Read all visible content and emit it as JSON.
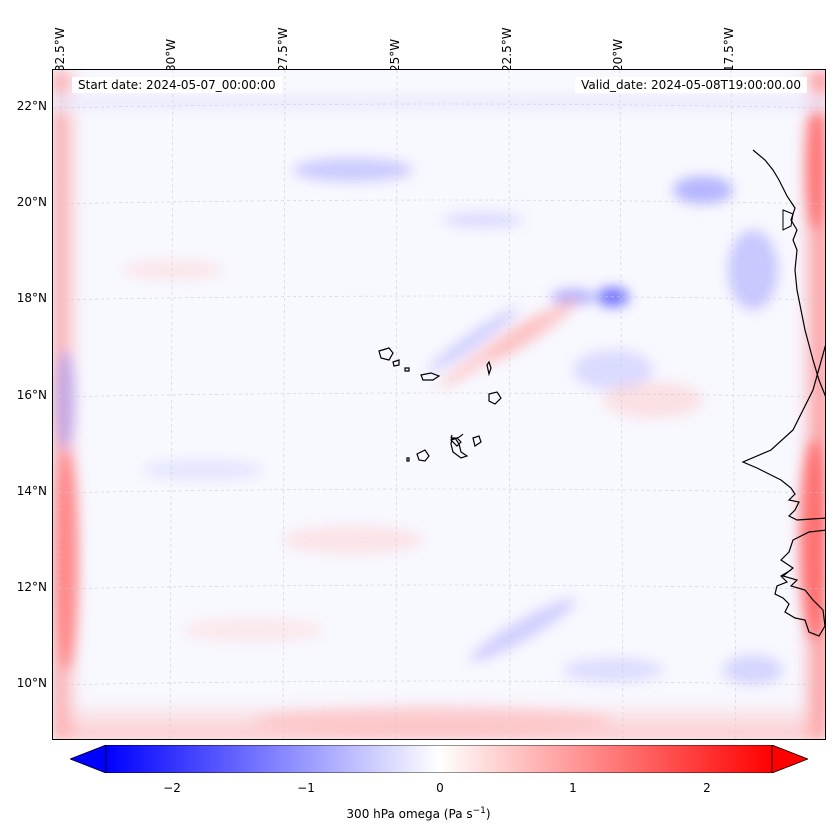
{
  "map": {
    "start_date": "Start date: 2024-05-07_00:00:00",
    "valid_date": "Valid_date: 2024-05-08T19:00:00.00",
    "lon_labels": [
      "32.5°W",
      "30°W",
      "27.5°W",
      "25°W",
      "22.5°W",
      "20°W",
      "17.5°W"
    ],
    "lat_labels": [
      "22°N",
      "20°N",
      "18°N",
      "16°N",
      "14°N",
      "12°N",
      "10°N"
    ]
  },
  "colorbar": {
    "label": "300 hPa omega (Pa s",
    "label_sup": "−1",
    "label_end": ")",
    "ticks": [
      "−2",
      "−1",
      "0",
      "1",
      "2"
    ],
    "min_color": "#0000ff",
    "mid_color": "#ffffff",
    "max_color": "#ff0000"
  }
}
